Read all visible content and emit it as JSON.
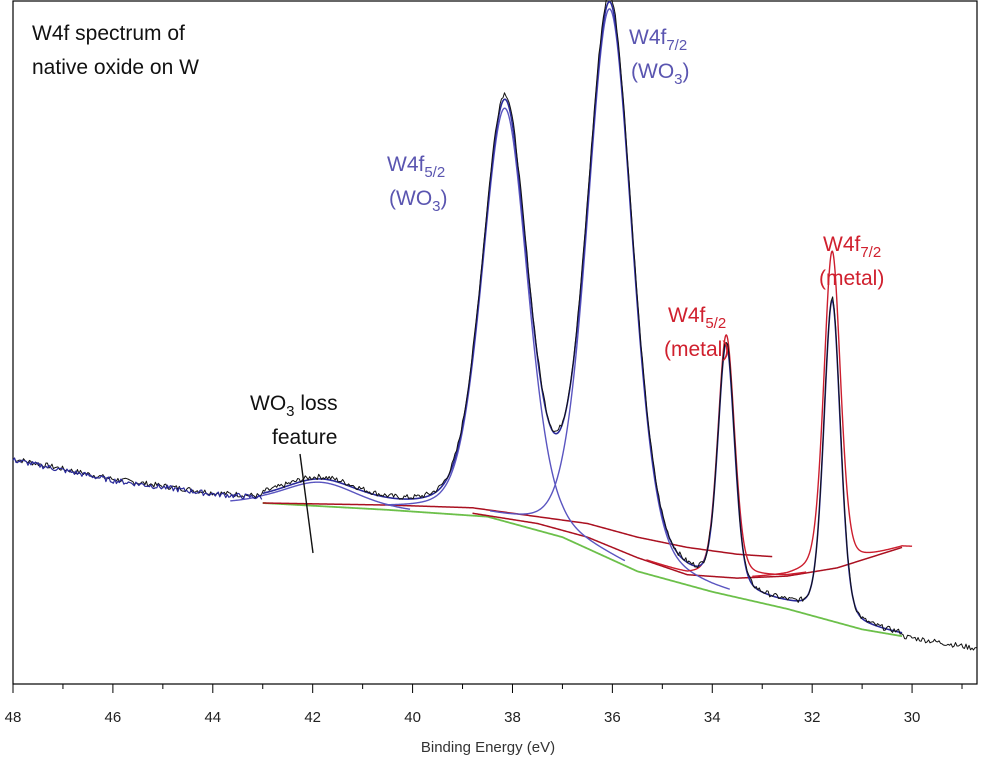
{
  "chart_data": {
    "type": "line",
    "xlabel": "Binding Energy (eV)",
    "ylabel": "",
    "xlim": [
      48,
      28.7
    ],
    "x_reversed": true,
    "ylim": [
      0,
      1
    ],
    "grid": false,
    "xticks": [
      {
        "value": 48,
        "label": "48"
      },
      {
        "value": 46,
        "label": "46"
      },
      {
        "value": 44,
        "label": "44"
      },
      {
        "value": 42,
        "label": "42"
      },
      {
        "value": 40,
        "label": "40"
      },
      {
        "value": 38,
        "label": "38"
      },
      {
        "value": 36,
        "label": "36"
      },
      {
        "value": 34,
        "label": "34"
      },
      {
        "value": 32,
        "label": "32"
      },
      {
        "value": 30,
        "label": "30"
      }
    ],
    "annotations": {
      "title_line1": "W4f spectrum of",
      "title_line2": "native oxide on W",
      "w52_oxide_main": "W4f",
      "w52_oxide_sub": "5/2",
      "w52_oxide_state": "(WO",
      "w52_oxide_state_sub": "3",
      "w52_oxide_state_end": ")",
      "w72_oxide_main": "W4f",
      "w72_oxide_sub": "7/2",
      "w72_oxide_state": "(WO",
      "w72_oxide_state_sub": "3",
      "w72_oxide_state_end": ")",
      "w52_metal_main": "W4f",
      "w52_metal_sub": "5/2",
      "w52_metal_state": "(metal)",
      "w72_metal_main": "W4f",
      "w72_metal_sub": "7/2",
      "w72_metal_state": "(metal)",
      "loss_line1_a": "WO",
      "loss_line1_sub": "3",
      "loss_line1_b": " loss",
      "loss_line2": "feature"
    },
    "colors": {
      "data": "#111111",
      "envelope": "#2a2a9a",
      "oxide_components": "#5a55c0",
      "metal_components": "#cc1e2e",
      "background": "#6cc04a",
      "background_metal": "#aa1020",
      "axis": "#000000"
    },
    "baseline": {
      "background": [
        [
          43.0,
          0.265
        ],
        [
          40.5,
          0.255
        ],
        [
          38.5,
          0.245
        ],
        [
          37.0,
          0.215
        ],
        [
          35.5,
          0.165
        ],
        [
          34.0,
          0.135
        ],
        [
          32.5,
          0.11
        ],
        [
          31.0,
          0.08
        ],
        [
          30.2,
          0.07
        ]
      ],
      "metal_background": [
        [
          43.0,
          0.265
        ],
        [
          40.5,
          0.258
        ],
        [
          38.8,
          0.25
        ],
        [
          37.5,
          0.235
        ],
        [
          36.5,
          0.215
        ],
        [
          35.5,
          0.185
        ],
        [
          34.5,
          0.16
        ],
        [
          33.5,
          0.155
        ],
        [
          32.5,
          0.158
        ],
        [
          31.5,
          0.17
        ],
        [
          30.2,
          0.2
        ]
      ],
      "loss_background": [
        [
          43.0,
          0.265
        ],
        [
          40.5,
          0.262
        ],
        [
          38.8,
          0.258
        ],
        [
          37.5,
          0.245
        ],
        [
          36.5,
          0.235
        ],
        [
          35.5,
          0.215
        ],
        [
          34.5,
          0.2
        ],
        [
          33.5,
          0.19
        ],
        [
          32.5,
          0.185
        ],
        [
          31.5,
          0.2
        ],
        [
          30.2,
          0.21
        ]
      ]
    },
    "components": [
      {
        "kind": "oxide",
        "center": 38.15,
        "height": 0.605,
        "width": 0.46
      },
      {
        "kind": "oxide",
        "center": 36.05,
        "height": 0.805,
        "width": 0.46
      },
      {
        "kind": "metal",
        "center": 33.72,
        "height": 0.355,
        "width": 0.17
      },
      {
        "kind": "metal",
        "center": 31.6,
        "height": 0.465,
        "width": 0.17
      },
      {
        "kind": "loss",
        "center": 41.85,
        "height": 0.035,
        "width": 0.75
      }
    ],
    "raw_left_tail": [
      [
        48.0,
        0.33
      ],
      [
        46.0,
        0.3
      ],
      [
        44.0,
        0.28
      ],
      [
        43.0,
        0.275
      ]
    ]
  }
}
